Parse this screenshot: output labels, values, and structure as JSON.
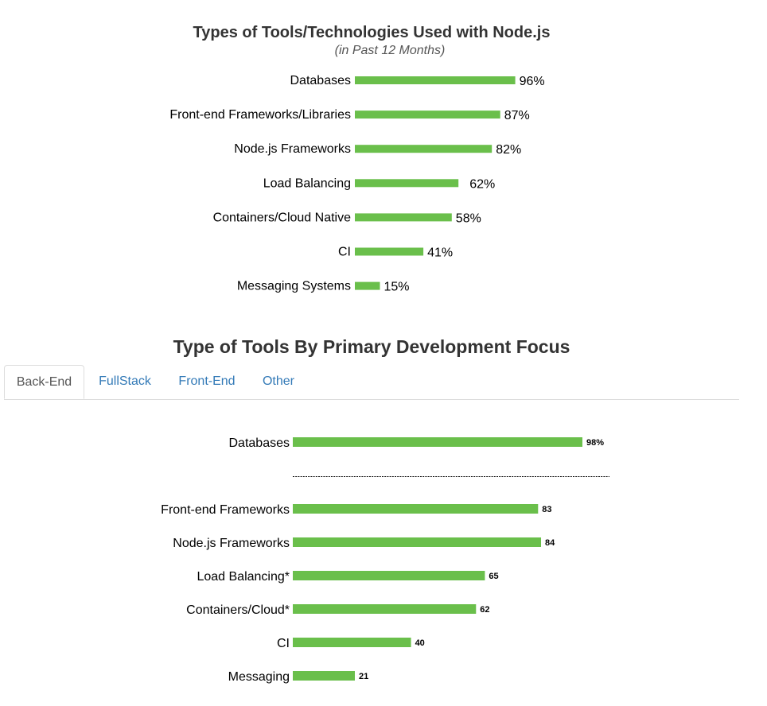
{
  "chart_data": [
    {
      "type": "bar",
      "orientation": "horizontal",
      "title": "Types of Tools/Technologies Used with Node.js",
      "subtitle": "(in Past 12 Months)",
      "categories": [
        "Databases",
        "Front-end Frameworks/Libraries",
        "Node.js Frameworks",
        "Load Balancing",
        "Containers/Cloud Native",
        "CI",
        "Messaging Systems"
      ],
      "values": [
        96,
        87,
        82,
        62,
        58,
        41,
        15
      ],
      "value_labels": [
        "96%",
        "87%",
        "82%",
        "62%",
        "58%",
        "41%",
        "15%"
      ],
      "color": "#6abf4b",
      "grid": false
    },
    {
      "type": "bar",
      "orientation": "horizontal",
      "title": "Type of Tools By Primary Development Focus",
      "tabs": [
        {
          "label": "Back-End",
          "active": true
        },
        {
          "label": "FullStack",
          "active": false
        },
        {
          "label": "Front-End",
          "active": false
        },
        {
          "label": "Other",
          "active": false
        }
      ],
      "categories": [
        "Databases",
        "Front-end Frameworks",
        "Node.js Frameworks",
        "Load Balancing*",
        "Containers/Cloud*",
        "CI",
        "Messaging"
      ],
      "values": [
        98,
        83,
        84,
        65,
        62,
        40,
        21
      ],
      "value_labels": [
        "98%",
        "83",
        "84",
        "65",
        "62",
        "40",
        "21"
      ],
      "color": "#6abf4b",
      "grid": false,
      "separator_after_first": true
    }
  ]
}
